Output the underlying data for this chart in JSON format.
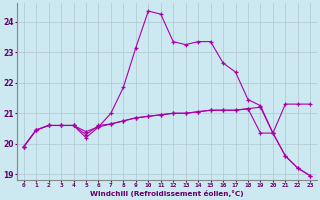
{
  "xlabel": "Windchill (Refroidissement éolien,°C)",
  "background_color": "#cce8f0",
  "line_color": "#aa00aa",
  "grid_color": "#b0c8d0",
  "xlim": [
    -0.5,
    23.5
  ],
  "ylim": [
    18.8,
    24.6
  ],
  "yticks": [
    19,
    20,
    21,
    22,
    23,
    24
  ],
  "xticks": [
    0,
    1,
    2,
    3,
    4,
    5,
    6,
    7,
    8,
    9,
    10,
    11,
    12,
    13,
    14,
    15,
    16,
    17,
    18,
    19,
    20,
    21,
    22,
    23
  ],
  "line1_x": [
    0,
    1,
    2,
    3,
    4,
    5,
    6,
    7,
    8,
    9,
    10,
    11,
    12,
    13,
    14,
    15,
    16,
    17,
    18,
    19,
    20,
    21,
    22,
    23
  ],
  "line1_y": [
    19.9,
    20.45,
    20.6,
    20.6,
    20.6,
    20.4,
    20.55,
    20.65,
    20.75,
    20.85,
    20.9,
    20.95,
    21.0,
    21.0,
    21.05,
    21.1,
    21.1,
    21.1,
    21.15,
    21.2,
    20.35,
    21.3,
    21.3,
    21.3
  ],
  "line2_x": [
    0,
    1,
    2,
    3,
    4,
    5,
    6,
    7,
    8,
    9,
    10,
    11,
    12,
    13,
    14,
    15,
    16,
    17,
    18,
    19,
    20,
    21,
    22,
    23
  ],
  "line2_y": [
    19.9,
    20.45,
    20.6,
    20.6,
    20.6,
    20.2,
    20.55,
    21.0,
    21.85,
    23.15,
    24.35,
    24.25,
    23.35,
    23.25,
    23.35,
    23.35,
    22.65,
    22.35,
    21.45,
    21.25,
    20.35,
    19.6,
    19.2,
    18.95
  ],
  "line3_x": [
    0,
    1,
    2,
    3,
    4,
    5,
    6,
    7,
    8,
    9,
    10,
    11,
    12,
    13,
    14,
    15,
    16,
    17,
    18,
    19,
    20,
    21,
    22,
    23
  ],
  "line3_y": [
    19.9,
    20.45,
    20.6,
    20.6,
    20.6,
    20.3,
    20.6,
    20.65,
    20.75,
    20.85,
    20.9,
    20.95,
    21.0,
    21.0,
    21.05,
    21.1,
    21.1,
    21.1,
    21.15,
    20.35,
    20.35,
    19.6,
    19.2,
    18.95
  ]
}
